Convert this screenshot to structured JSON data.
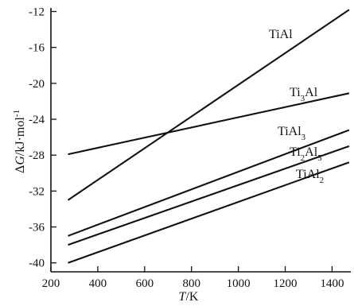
{
  "chart_data": {
    "type": "line",
    "xlabel": "T/K",
    "ylabel": "ΔG/kJ·mol⁻¹",
    "xlim": [
      200,
      1480
    ],
    "ylim": [
      -41,
      -11.6
    ],
    "x_ticks": [
      200,
      400,
      600,
      800,
      1000,
      1200,
      1400
    ],
    "x_tick_labels": [
      "200",
      "400",
      "600",
      "800",
      "1000",
      "1200",
      "1400"
    ],
    "y_ticks": [
      -40,
      -36,
      -32,
      -28,
      -24,
      -20,
      -16,
      -12
    ],
    "y_tick_labels": [
      "-40",
      "-36",
      "-32",
      "-28",
      "-24",
      "-20",
      "-16",
      "-12"
    ],
    "series": [
      {
        "name": "TiAl",
        "label": {
          "base": "TiAl",
          "sub": ""
        },
        "x": [
          273,
          1473
        ],
        "y": [
          -33.0,
          -11.8
        ]
      },
      {
        "name": "Ti3Al",
        "label": {
          "base": "Ti",
          "sub": "3",
          "rest": "Al"
        },
        "x": [
          273,
          1473
        ],
        "y": [
          -27.9,
          -21.1
        ]
      },
      {
        "name": "TiAl3",
        "label": {
          "base": "TiAl",
          "sub": "3"
        },
        "x": [
          273,
          1473
        ],
        "y": [
          -37.0,
          -25.2
        ]
      },
      {
        "name": "Ti2Al5",
        "label": {
          "base": "Ti",
          "sub": "2",
          "rest": "Al",
          "sub2": "5"
        },
        "x": [
          273,
          1473
        ],
        "y": [
          -38.0,
          -27.0
        ]
      },
      {
        "name": "TiAl2",
        "label": {
          "base": "TiAl",
          "sub": "2"
        },
        "x": [
          273,
          1473
        ],
        "y": [
          -40.0,
          -28.8
        ]
      }
    ],
    "grid": false,
    "legend": "none"
  }
}
